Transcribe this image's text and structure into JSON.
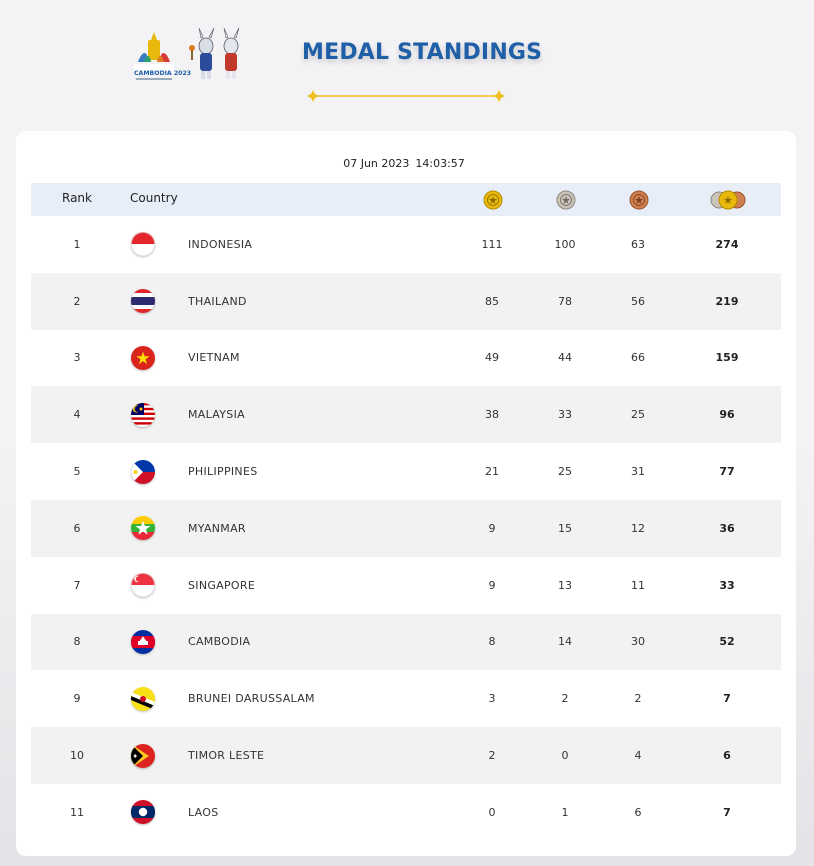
{
  "header": {
    "title": "MEDAL STANDINGS",
    "logo_icon": "sea-games-cambodia-2023-logo-with-mascots-icon",
    "logo_text": "CAMBODIA 2023"
  },
  "timestamp": {
    "date": "07 Jun 2023",
    "time": "14:03:57"
  },
  "table": {
    "columns": {
      "rank": "Rank",
      "country": "Country",
      "gold_icon": "gold-medal-icon",
      "silver_icon": "silver-medal-icon",
      "bronze_icon": "bronze-medal-icon",
      "total_icon": "total-medals-icon"
    },
    "rows": [
      {
        "rank": "1",
        "country": "INDONESIA",
        "flag": "flag-indonesia-icon",
        "gold": "111",
        "silver": "100",
        "bronze": "63",
        "total": "274"
      },
      {
        "rank": "2",
        "country": "THAILAND",
        "flag": "flag-thailand-icon",
        "gold": "85",
        "silver": "78",
        "bronze": "56",
        "total": "219"
      },
      {
        "rank": "3",
        "country": "VIETNAM",
        "flag": "flag-vietnam-icon",
        "gold": "49",
        "silver": "44",
        "bronze": "66",
        "total": "159"
      },
      {
        "rank": "4",
        "country": "MALAYSIA",
        "flag": "flag-malaysia-icon",
        "gold": "38",
        "silver": "33",
        "bronze": "25",
        "total": "96"
      },
      {
        "rank": "5",
        "country": "PHILIPPINES",
        "flag": "flag-philippines-icon",
        "gold": "21",
        "silver": "25",
        "bronze": "31",
        "total": "77"
      },
      {
        "rank": "6",
        "country": "MYANMAR",
        "flag": "flag-myanmar-icon",
        "gold": "9",
        "silver": "15",
        "bronze": "12",
        "total": "36"
      },
      {
        "rank": "7",
        "country": "SINGAPORE",
        "flag": "flag-singapore-icon",
        "gold": "9",
        "silver": "13",
        "bronze": "11",
        "total": "33"
      },
      {
        "rank": "8",
        "country": "CAMBODIA",
        "flag": "flag-cambodia-icon",
        "gold": "8",
        "silver": "14",
        "bronze": "30",
        "total": "52"
      },
      {
        "rank": "9",
        "country": "BRUNEI DARUSSALAM",
        "flag": "flag-brunei-icon",
        "gold": "3",
        "silver": "2",
        "bronze": "2",
        "total": "7"
      },
      {
        "rank": "10",
        "country": "TIMOR LESTE",
        "flag": "flag-timor-leste-icon",
        "gold": "2",
        "silver": "0",
        "bronze": "4",
        "total": "6"
      },
      {
        "rank": "11",
        "country": "LAOS",
        "flag": "flag-laos-icon",
        "gold": "0",
        "silver": "1",
        "bronze": "6",
        "total": "7"
      }
    ]
  },
  "colors": {
    "title": "#1f5fa8",
    "header_row": "#e7eef8",
    "alt_row": "#f2f2f2",
    "gold": "#e8b90c",
    "silver": "#b9b2a8",
    "bronze": "#c77a4a",
    "accent_line": "#f0c020"
  }
}
